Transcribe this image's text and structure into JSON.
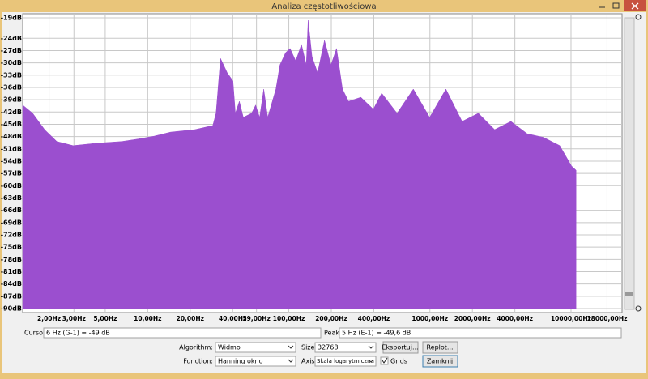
{
  "window": {
    "title": "Analiza częstotliwościowa"
  },
  "chart_data": {
    "type": "area",
    "color": "#9b4fcf",
    "log_x": true,
    "grid": true,
    "x": [
      1.3,
      1.53,
      1.86,
      2.27,
      2.96,
      4.4,
      6.55,
      8.5,
      11.1,
      14.5,
      21.6,
      28.9,
      30.5,
      32.8,
      36.6,
      40.2,
      41.8,
      44.6,
      47.6,
      54.5,
      58.2,
      62.1,
      66.4,
      70.9,
      81,
      86.5,
      94.9,
      102,
      112,
      123,
      133,
      137,
      146,
      160,
      179,
      199,
      218,
      240,
      265,
      324,
      397,
      455,
      585,
      763,
      995,
      1298,
      1690,
      2205,
      2875,
      3750,
      4890,
      6380,
      8320,
      10100,
      10850
    ],
    "values": [
      -40.3,
      -42.3,
      -46.3,
      -49.2,
      -50.2,
      -49.6,
      -49.2,
      -48.6,
      -47.9,
      -46.9,
      -46.3,
      -45.3,
      -42.3,
      -28.9,
      -32.4,
      -34.4,
      -42.3,
      -39.4,
      -43.3,
      -42.3,
      -40.3,
      -43.3,
      -36.4,
      -43.3,
      -36.4,
      -30.5,
      -27.5,
      -26.5,
      -29.5,
      -25.5,
      -30.5,
      -19.6,
      -28.5,
      -32.4,
      -24.5,
      -30.5,
      -26.5,
      -36.4,
      -39.4,
      -38.4,
      -41.3,
      -37.4,
      -42.3,
      -36.4,
      -43.3,
      -36.4,
      -44.3,
      -42.3,
      -46.3,
      -44.3,
      -47.3,
      -48.2,
      -50.2,
      -55.2,
      -56.2
    ],
    "xlim": [
      1.3,
      23000
    ],
    "ylim": [
      -90,
      -19
    ],
    "xticks": [
      {
        "value": 2,
        "label": "2,00Hz"
      },
      {
        "value": 3,
        "label": "3,00Hz"
      },
      {
        "value": 5,
        "label": "5,00Hz"
      },
      {
        "value": 10,
        "label": "10,00Hz"
      },
      {
        "value": 20,
        "label": "20,00Hz"
      },
      {
        "value": 40,
        "label": "40,00Hz"
      },
      {
        "value": 59,
        "label": "59,00Hz"
      },
      {
        "value": 100,
        "label": "100,00Hz"
      },
      {
        "value": 200,
        "label": "200,00Hz"
      },
      {
        "value": 400,
        "label": "400,00Hz"
      },
      {
        "value": 1000,
        "label": "1000,00Hz"
      },
      {
        "value": 2000,
        "label": "2000,00Hz"
      },
      {
        "value": 4000,
        "label": "4000,00Hz"
      },
      {
        "value": 10000,
        "label": "10000,00Hz"
      },
      {
        "value": 18000,
        "label": "18000,00Hz"
      }
    ],
    "yticks": [
      {
        "value": -19,
        "label": "-19dB"
      },
      {
        "value": -24,
        "label": "-24dB"
      },
      {
        "value": -27,
        "label": "-27dB"
      },
      {
        "value": -30,
        "label": "-30dB"
      },
      {
        "value": -33,
        "label": "-33dB"
      },
      {
        "value": -36,
        "label": "-36dB"
      },
      {
        "value": -39,
        "label": "-39dB"
      },
      {
        "value": -42,
        "label": "-42dB"
      },
      {
        "value": -45,
        "label": "-45dB"
      },
      {
        "value": -48,
        "label": "-48dB"
      },
      {
        "value": -51,
        "label": "-51dB"
      },
      {
        "value": -54,
        "label": "-54dB"
      },
      {
        "value": -57,
        "label": "-57dB"
      },
      {
        "value": -60,
        "label": "-60dB"
      },
      {
        "value": -63,
        "label": "-63dB"
      },
      {
        "value": -66,
        "label": "-66dB"
      },
      {
        "value": -69,
        "label": "-69dB"
      },
      {
        "value": -72,
        "label": "-72dB"
      },
      {
        "value": -75,
        "label": "-75dB"
      },
      {
        "value": -78,
        "label": "-78dB"
      },
      {
        "value": -81,
        "label": "-81dB"
      },
      {
        "value": -84,
        "label": "-84dB"
      },
      {
        "value": -87,
        "label": "-87dB"
      },
      {
        "value": -90,
        "label": "-90dB"
      }
    ]
  },
  "controls": {
    "cursor_label": "Cursor:",
    "cursor_value": "6 Hz (G-1) = -49 dB",
    "peak_label": "Peak:",
    "peak_value": "5 Hz (E-1) = -49,6 dB",
    "algorithm_label": "Algorithm:",
    "algorithm": "Widmo",
    "size_label": "Size:",
    "size": "32768",
    "export": "Eksportuj...",
    "replot": "Replot...",
    "function_label": "Function:",
    "function": "Hanning okno",
    "axis_label": "Axis:",
    "axis": "Skala logarytmiczna",
    "grids": "Grids",
    "close": "Zamknij"
  }
}
